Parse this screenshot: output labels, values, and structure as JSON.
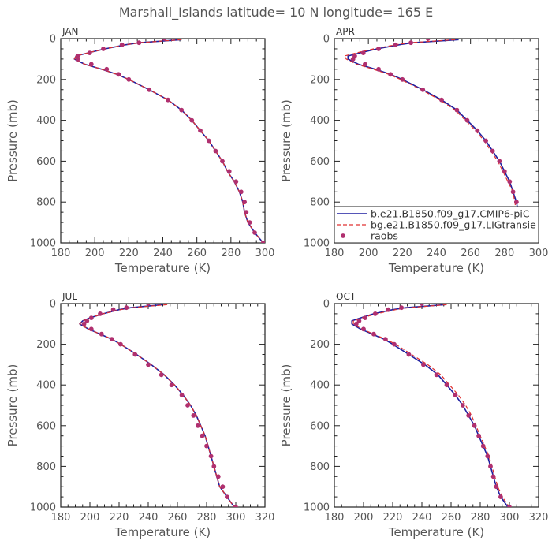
{
  "title": "Marshall_Islands  latitude= 10 N longitude= 165 E",
  "colors": {
    "series1": "#1f1fa0",
    "series2": "#e03030",
    "raobs": "#b0306f",
    "axis": "#222222",
    "text": "#555555"
  },
  "legend": {
    "entries": [
      "b.e21.B1850.f09_g17.CMIP6-piC",
      "bg.e21.B1850.f09_g17.LIGtransie",
      "raobs"
    ]
  },
  "chart_data": [
    {
      "type": "line",
      "panel": "JAN",
      "xlabel": "Temperature (K)",
      "ylabel": "Pressure (mb)",
      "xlim": [
        180,
        300
      ],
      "ylim": [
        1000,
        0
      ],
      "xticks": [
        180,
        200,
        220,
        240,
        260,
        280,
        300
      ],
      "yticks": [
        0,
        200,
        400,
        600,
        800,
        1000
      ],
      "series": [
        {
          "pressure": [
            5,
            20,
            30,
            50,
            70,
            85,
            100,
            125,
            150,
            175,
            200,
            250,
            300,
            350,
            400,
            450,
            500,
            550,
            600,
            650,
            700,
            750,
            800,
            850,
            900,
            950,
            1000
          ],
          "temperature": [
            251,
            226,
            218,
            206,
            196,
            189,
            188,
            194,
            204,
            213,
            220,
            232,
            243,
            251,
            257,
            262,
            267,
            271,
            275,
            278,
            282,
            285,
            287,
            288,
            290,
            294,
            299
          ]
        },
        {
          "pressure": [
            5,
            20,
            30,
            50,
            70,
            85,
            100,
            125,
            150,
            175,
            200,
            250,
            300,
            350,
            400,
            450,
            500,
            550,
            600,
            650,
            700,
            750,
            800,
            850,
            900,
            950,
            1000
          ],
          "temperature": [
            251,
            226,
            218,
            206,
            196,
            189,
            188,
            194,
            204,
            213,
            220,
            232,
            243,
            251,
            257,
            262,
            267,
            271,
            275,
            278,
            282,
            285,
            287,
            288,
            290,
            294,
            299
          ]
        },
        {
          "pressure": [
            0,
            20,
            30,
            50,
            70,
            85,
            100,
            125,
            150,
            175,
            200,
            250,
            300,
            350,
            400,
            450,
            500,
            550,
            600,
            650,
            700,
            750,
            800,
            850,
            900,
            950,
            1000
          ],
          "temperature": [
            241,
            226,
            216,
            205,
            197,
            190,
            190,
            198,
            207,
            214,
            220,
            232,
            243,
            251,
            257,
            262,
            267,
            271,
            275,
            279,
            283,
            286,
            288,
            289,
            291,
            294,
            299
          ]
        }
      ]
    },
    {
      "type": "line",
      "panel": "APR",
      "xlabel": "Temperature (K)",
      "ylabel": "Pressure (mb)",
      "xlim": [
        180,
        300
      ],
      "ylim": [
        1000,
        0
      ],
      "xticks": [
        180,
        200,
        220,
        240,
        260,
        280,
        300
      ],
      "yticks": [
        0,
        200,
        400,
        600,
        800,
        1000
      ],
      "series": [
        {
          "pressure": [
            5,
            20,
            30,
            50,
            70,
            85,
            100,
            125,
            150,
            175,
            200,
            250,
            300,
            350,
            400,
            450,
            500,
            550,
            600,
            650,
            700,
            750,
            800,
            850,
            900,
            950,
            1000
          ],
          "temperature": [
            253,
            226,
            218,
            205,
            195,
            188,
            188,
            194,
            204,
            213,
            220,
            232,
            243,
            252,
            258,
            264,
            269,
            273,
            277,
            280,
            283,
            285,
            287,
            288,
            290,
            294,
            299
          ]
        },
        {
          "pressure": [
            5,
            20,
            30,
            50,
            70,
            85,
            100,
            125,
            150,
            175,
            200,
            250,
            300,
            350,
            400,
            450,
            500,
            550,
            600,
            650,
            700,
            750,
            800,
            850,
            900,
            950,
            1000
          ],
          "temperature": [
            251,
            224,
            216,
            203,
            193,
            186,
            187,
            193,
            203,
            212,
            219,
            231,
            242,
            251,
            257,
            263,
            268,
            272,
            276,
            279,
            282,
            285,
            286,
            287,
            289,
            293,
            298
          ]
        },
        {
          "pressure": [
            0,
            20,
            30,
            50,
            70,
            85,
            100,
            125,
            150,
            175,
            200,
            250,
            300,
            350,
            400,
            450,
            500,
            550,
            600,
            650,
            700,
            750,
            800,
            850,
            900,
            950,
            1000
          ],
          "temperature": [
            235,
            225,
            216,
            206,
            197,
            192,
            191,
            198,
            206,
            213,
            220,
            232,
            243,
            252,
            258,
            264,
            269,
            273,
            277,
            280,
            283,
            285,
            287,
            288,
            290,
            294,
            298
          ]
        }
      ]
    },
    {
      "type": "line",
      "panel": "JUL",
      "xlabel": "Temperature (K)",
      "ylabel": "Pressure (mb)",
      "xlim": [
        180,
        320
      ],
      "ylim": [
        1000,
        0
      ],
      "xticks": [
        180,
        200,
        220,
        240,
        260,
        280,
        300,
        320
      ],
      "yticks": [
        0,
        200,
        400,
        600,
        800,
        1000
      ],
      "series": [
        {
          "pressure": [
            5,
            20,
            30,
            50,
            70,
            85,
            100,
            125,
            150,
            175,
            200,
            250,
            300,
            350,
            400,
            450,
            500,
            550,
            600,
            650,
            700,
            750,
            800,
            850,
            900,
            950,
            1000
          ],
          "temperature": [
            250,
            228,
            220,
            209,
            200,
            195,
            193,
            199,
            207,
            215,
            221,
            232,
            242,
            251,
            258,
            264,
            269,
            273,
            276,
            279,
            281,
            283,
            285,
            287,
            289,
            294,
            299
          ]
        },
        {
          "pressure": [
            5,
            20,
            30,
            50,
            70,
            85,
            100,
            125,
            150,
            175,
            200,
            250,
            300,
            350,
            400,
            450,
            500,
            550,
            600,
            650,
            700,
            750,
            800,
            850,
            900,
            950,
            1000
          ],
          "temperature": [
            253,
            229,
            221,
            209,
            200,
            195,
            193,
            199,
            207,
            215,
            221,
            232,
            242,
            251,
            258,
            264,
            269,
            273,
            276,
            279,
            281,
            283,
            285,
            287,
            289,
            294,
            299
          ]
        },
        {
          "pressure": [
            0,
            20,
            30,
            50,
            70,
            85,
            100,
            125,
            150,
            175,
            200,
            250,
            300,
            350,
            400,
            450,
            500,
            550,
            600,
            650,
            700,
            750,
            800,
            850,
            900,
            950,
            1000
          ],
          "temperature": [
            240,
            225,
            216,
            207,
            201,
            198,
            196,
            201,
            208,
            215,
            221,
            231,
            240,
            249,
            256,
            263,
            267,
            271,
            274,
            277,
            280,
            283,
            285,
            288,
            291,
            294,
            300
          ]
        }
      ]
    },
    {
      "type": "line",
      "panel": "OCT",
      "xlabel": "Temperature (K)",
      "ylabel": "Pressure (mb)",
      "xlim": [
        180,
        320
      ],
      "ylim": [
        1000,
        0
      ],
      "xticks": [
        180,
        200,
        220,
        240,
        260,
        280,
        300,
        320
      ],
      "yticks": [
        0,
        200,
        400,
        600,
        800,
        1000
      ],
      "series": [
        {
          "pressure": [
            5,
            20,
            30,
            50,
            70,
            85,
            100,
            125,
            150,
            175,
            200,
            250,
            300,
            350,
            400,
            450,
            500,
            550,
            600,
            650,
            700,
            750,
            800,
            850,
            900,
            950,
            1000
          ],
          "temperature": [
            256,
            229,
            220,
            207,
            198,
            192,
            192,
            198,
            206,
            214,
            220,
            231,
            242,
            251,
            257,
            263,
            268,
            272,
            276,
            279,
            282,
            285,
            287,
            289,
            291,
            294,
            299
          ]
        },
        {
          "pressure": [
            5,
            20,
            30,
            50,
            70,
            85,
            100,
            125,
            150,
            175,
            200,
            250,
            300,
            350,
            400,
            450,
            500,
            550,
            600,
            650,
            700,
            750,
            800,
            850,
            900,
            950,
            1000
          ],
          "temperature": [
            257,
            231,
            222,
            209,
            199,
            193,
            193,
            199,
            207,
            215,
            222,
            233,
            244,
            253,
            259,
            265,
            270,
            274,
            277,
            280,
            283,
            286,
            288,
            290,
            292,
            295,
            300
          ]
        },
        {
          "pressure": [
            0,
            20,
            30,
            50,
            70,
            85,
            100,
            125,
            150,
            175,
            200,
            250,
            300,
            350,
            400,
            450,
            500,
            550,
            600,
            650,
            700,
            750,
            800,
            850,
            900,
            950,
            1000
          ],
          "temperature": [
            240,
            226,
            217,
            208,
            201,
            197,
            195,
            200,
            207,
            215,
            221,
            231,
            241,
            250,
            257,
            263,
            268,
            272,
            276,
            279,
            282,
            285,
            287,
            289,
            291,
            294,
            300
          ]
        }
      ]
    }
  ]
}
